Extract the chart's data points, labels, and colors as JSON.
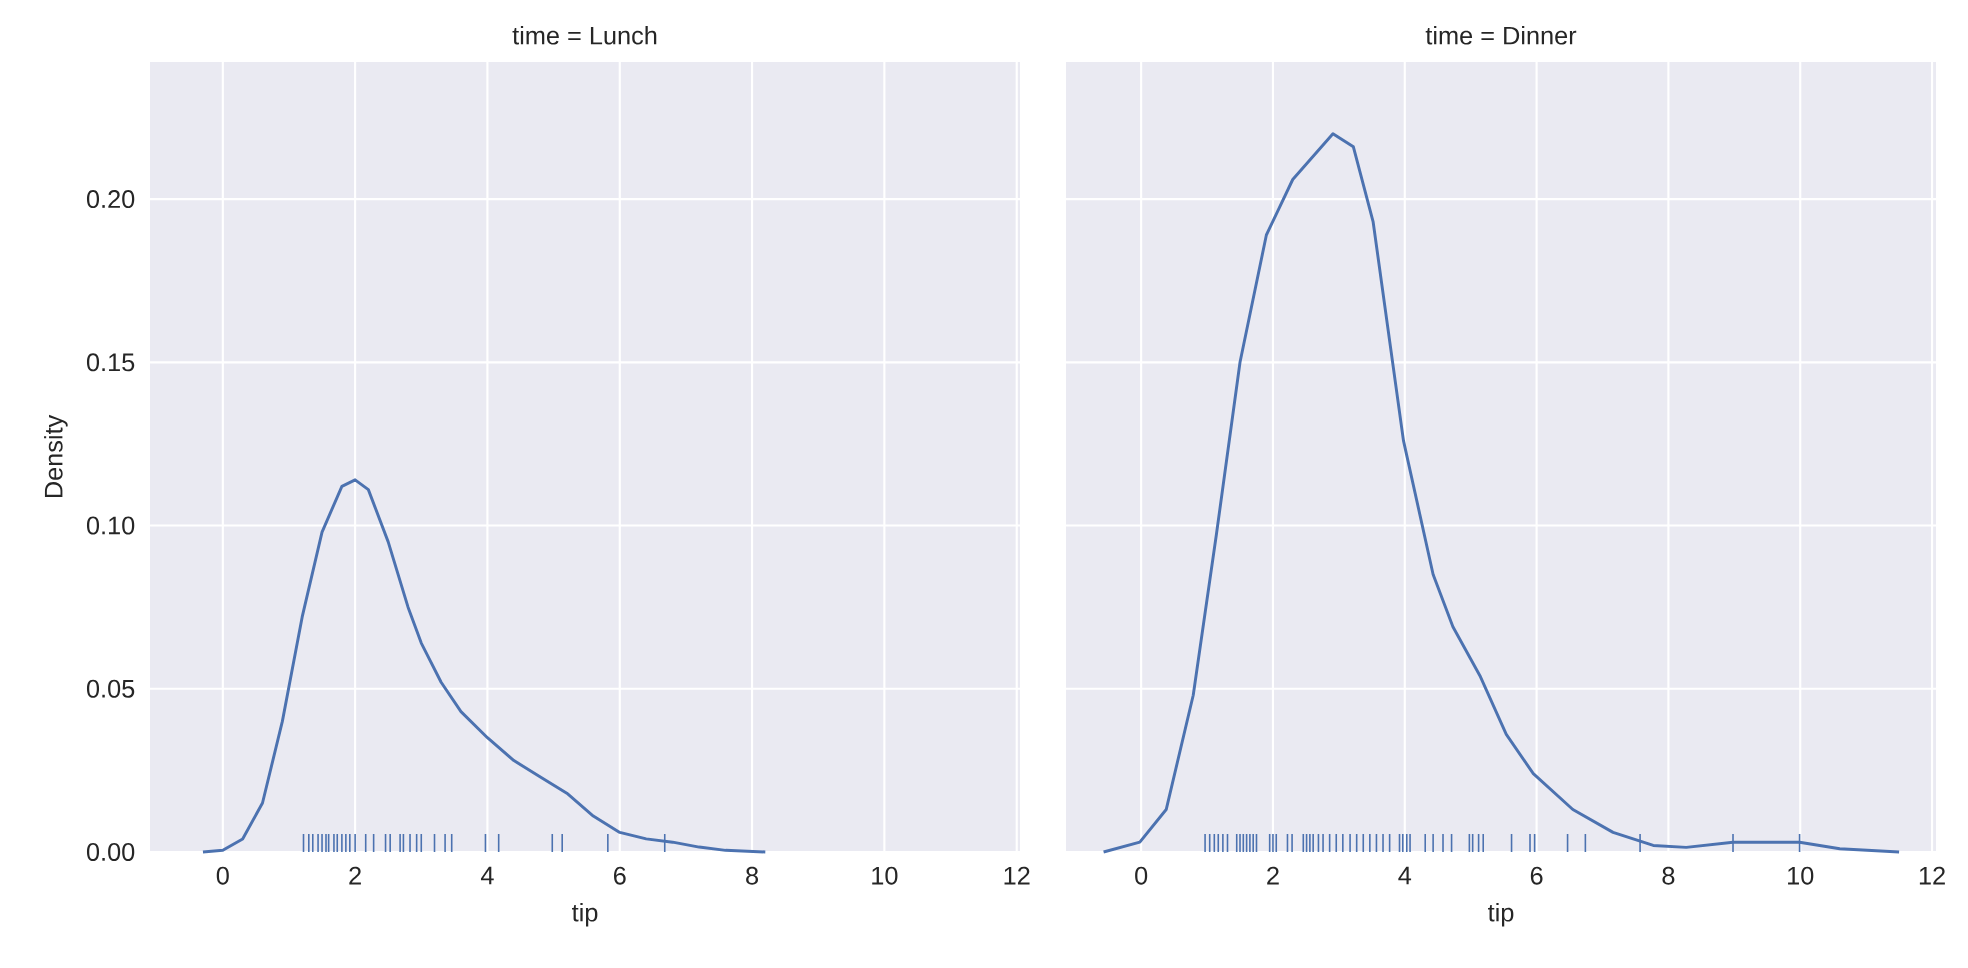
{
  "chart_data": [
    {
      "type": "line",
      "title": "time = Lunch",
      "xlabel": "tip",
      "ylabel": "Density",
      "xlim": [
        -1.1,
        12.05
      ],
      "ylim": [
        0,
        0.242
      ],
      "xticks": [
        0,
        2,
        4,
        6,
        8,
        10,
        12
      ],
      "yticks": [
        {
          "value": 0,
          "label": "0.00"
        },
        {
          "value": 0.05,
          "label": "0.05"
        },
        {
          "value": 0.1,
          "label": "0.10"
        },
        {
          "value": 0.15,
          "label": "0.15"
        },
        {
          "value": 0.2,
          "label": "0.20"
        }
      ],
      "grid": true,
      "series": [
        {
          "color": "#4c72b0",
          "marker": "none",
          "x": [
            -0.3,
            0,
            0.3,
            0.6,
            0.9,
            1.2,
            1.5,
            1.8,
            2.0,
            2.2,
            2.5,
            2.8,
            3.0,
            3.3,
            3.6,
            4.0,
            4.4,
            4.8,
            5.2,
            5.6,
            6.0,
            6.4,
            6.8,
            7.2,
            7.6,
            8.2
          ],
          "values": [
            0,
            0.0005,
            0.004,
            0.015,
            0.04,
            0.072,
            0.098,
            0.112,
            0.114,
            0.111,
            0.095,
            0.075,
            0.064,
            0.052,
            0.043,
            0.035,
            0.028,
            0.023,
            0.018,
            0.011,
            0.006,
            0.004,
            0.003,
            0.0015,
            0.0005,
            0
          ]
        },
        {
          "type": "bar",
          "color": "#4c72b0",
          "x": [
            1.22,
            1.3,
            1.36,
            1.44,
            1.5,
            1.56,
            1.6,
            1.68,
            1.73,
            1.8,
            1.86,
            1.92,
            2.0,
            2.16,
            2.28,
            2.46,
            2.53,
            2.68,
            2.73,
            2.83,
            2.93,
            3.0,
            3.2,
            3.36,
            3.46,
            3.97,
            4.17,
            4.98,
            5.13,
            5.82,
            6.68
          ],
          "values": [
            0.0055,
            0.0055,
            0.0055,
            0.0055,
            0.0055,
            0.0055,
            0.0055,
            0.0055,
            0.0055,
            0.0055,
            0.0055,
            0.0055,
            0.0055,
            0.0055,
            0.0055,
            0.0055,
            0.0055,
            0.0055,
            0.0055,
            0.0055,
            0.0055,
            0.0055,
            0.0055,
            0.0055,
            0.0055,
            0.0055,
            0.0055,
            0.0055,
            0.0055,
            0.0055,
            0.0055
          ]
        }
      ]
    },
    {
      "type": "line",
      "title": "time = Dinner",
      "xlabel": "tip",
      "xlim": [
        -1.14,
        12.06
      ],
      "ylim": [
        0,
        0.242
      ],
      "xticks": [
        0,
        2,
        4,
        6,
        8,
        10,
        12
      ],
      "yticks": [
        {
          "value": 0,
          "label": null
        },
        {
          "value": 0.05,
          "label": null
        },
        {
          "value": 0.1,
          "label": null
        },
        {
          "value": 0.15,
          "label": null
        },
        {
          "value": 0.2,
          "label": null
        }
      ],
      "grid": true,
      "tick_labels": "x",
      "series": [
        {
          "color": "#4c72b0",
          "marker": "none",
          "x": [
            -0.57,
            -0.02,
            0.38,
            0.79,
            1.14,
            1.5,
            1.9,
            2.3,
            2.91,
            3.22,
            3.52,
            3.98,
            4.43,
            4.73,
            5.14,
            5.54,
            5.95,
            6.55,
            7.16,
            7.77,
            8.27,
            8.98,
            9.99,
            10.6,
            11.5
          ],
          "values": [
            0,
            0.003,
            0.013,
            0.048,
            0.097,
            0.15,
            0.189,
            0.206,
            0.22,
            0.216,
            0.193,
            0.126,
            0.085,
            0.069,
            0.054,
            0.036,
            0.024,
            0.013,
            0.006,
            0.002,
            0.0014,
            0.003,
            0.003,
            0.001,
            0
          ]
        },
        {
          "type": "bar",
          "color": "#4c72b0",
          "x": [
            0.97,
            1.04,
            1.11,
            1.17,
            1.24,
            1.31,
            1.45,
            1.5,
            1.55,
            1.6,
            1.65,
            1.7,
            1.75,
            1.95,
            2.0,
            2.05,
            2.22,
            2.29,
            2.46,
            2.51,
            2.56,
            2.61,
            2.69,
            2.76,
            2.86,
            2.96,
            3.06,
            3.17,
            3.27,
            3.37,
            3.47,
            3.57,
            3.67,
            3.77,
            3.92,
            3.97,
            4.03,
            4.08,
            4.31,
            4.43,
            4.58,
            4.71,
            4.98,
            5.03,
            5.12,
            5.19,
            5.62,
            5.9,
            5.97,
            6.47,
            6.74,
            7.57,
            8.98,
            9.99
          ],
          "values": [
            0.0055,
            0.0055,
            0.0055,
            0.0055,
            0.0055,
            0.0055,
            0.0055,
            0.0055,
            0.0055,
            0.0055,
            0.0055,
            0.0055,
            0.0055,
            0.0055,
            0.0055,
            0.0055,
            0.0055,
            0.0055,
            0.0055,
            0.0055,
            0.0055,
            0.0055,
            0.0055,
            0.0055,
            0.0055,
            0.0055,
            0.0055,
            0.0055,
            0.0055,
            0.0055,
            0.0055,
            0.0055,
            0.0055,
            0.0055,
            0.0055,
            0.0055,
            0.0055,
            0.0055,
            0.0055,
            0.0055,
            0.0055,
            0.0055,
            0.0055,
            0.0055,
            0.0055,
            0.0055,
            0.0055,
            0.0055,
            0.0055,
            0.0055,
            0.0055,
            0.0055,
            0.0055,
            0.0055
          ]
        }
      ]
    }
  ]
}
